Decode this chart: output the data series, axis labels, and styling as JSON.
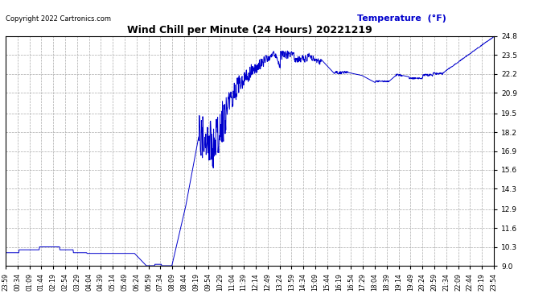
{
  "title": "Wind Chill per Minute (24 Hours) 20221219",
  "copyright": "Copyright 2022 Cartronics.com",
  "legend_label": "Temperature  (°F)",
  "line_color": "#0000cc",
  "background_color": "#ffffff",
  "grid_color": "#aaaaaa",
  "ylim": [
    9.0,
    24.8
  ],
  "yticks": [
    9.0,
    10.3,
    11.6,
    12.9,
    14.3,
    15.6,
    16.9,
    18.2,
    19.5,
    20.9,
    22.2,
    23.5,
    24.8
  ],
  "xtick_labels": [
    "23:59",
    "00:34",
    "01:09",
    "01:44",
    "02:19",
    "02:54",
    "03:29",
    "04:04",
    "04:39",
    "05:14",
    "05:49",
    "06:24",
    "06:59",
    "07:34",
    "08:09",
    "08:44",
    "09:19",
    "09:54",
    "10:29",
    "11:04",
    "11:39",
    "12:14",
    "12:49",
    "13:24",
    "13:59",
    "14:34",
    "15:09",
    "15:44",
    "16:19",
    "16:54",
    "17:29",
    "18:04",
    "18:39",
    "19:14",
    "19:49",
    "20:24",
    "20:59",
    "21:34",
    "22:09",
    "22:44",
    "23:19",
    "23:54"
  ]
}
